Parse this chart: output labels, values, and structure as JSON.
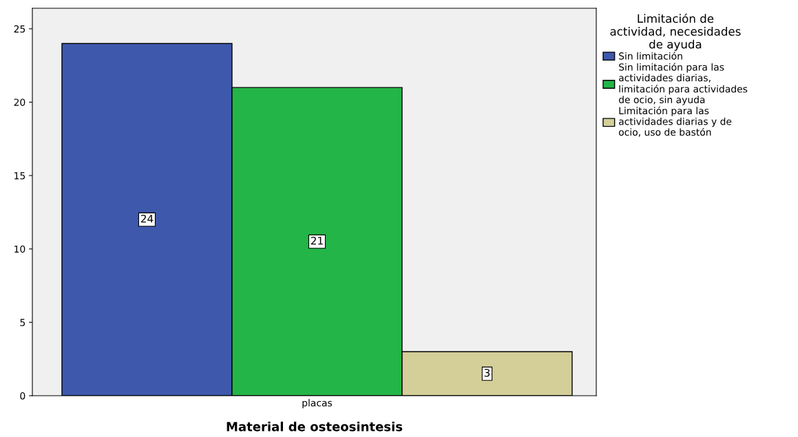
{
  "chart_data": {
    "type": "bar",
    "xlabel": "Material de osteosintesis",
    "legend_title": "Limitación de actividad, necesidades de ayuda",
    "categories": [
      "placas"
    ],
    "series": [
      {
        "name": "Sin limitación",
        "color": "#3e58ac",
        "values": [
          24
        ]
      },
      {
        "name": "Sin limitación para las actividades diarias, limitación para actividades de ocio, sin ayuda",
        "color": "#23b548",
        "values": [
          21
        ]
      },
      {
        "name": "Limitación para las actividades diarias y de ocio, uso de bastón",
        "color": "#d4cf98",
        "values": [
          3
        ]
      }
    ],
    "ylim": [
      0,
      26.4
    ],
    "yticks": [
      0,
      5,
      10,
      15,
      20,
      25
    ],
    "data_labels": true,
    "grid": false,
    "legend": "right"
  }
}
